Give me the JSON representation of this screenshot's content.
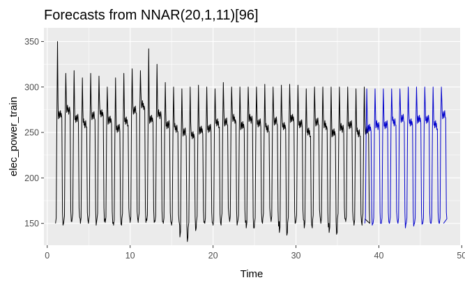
{
  "chart_data": {
    "type": "line",
    "title": "Forecasts from NNAR(20,1,11)[96]",
    "xlabel": "Time",
    "ylabel": "elec_power_train",
    "xlim": [
      -0.4,
      49.8
    ],
    "ylim": [
      126,
      365
    ],
    "x_ticks": [
      0,
      10,
      20,
      30,
      40,
      50
    ],
    "y_ticks": [
      150,
      200,
      250,
      300,
      350
    ],
    "grid": true,
    "legend": "none",
    "colors": {
      "panel_background": "#ebebeb",
      "grid": "#ffffff",
      "observed": "#000000",
      "forecast": "#0000cd"
    },
    "series": [
      {
        "role": "observed",
        "period": 1,
        "x_start": 1.0,
        "x_end": 38.3,
        "trough_values": [
          150,
          152,
          155,
          150,
          153,
          155,
          151,
          148,
          155,
          151,
          155,
          153,
          152,
          150,
          148,
          135,
          145,
          152,
          150,
          148,
          155,
          152,
          153,
          145,
          150,
          155,
          152,
          140,
          151,
          153,
          145,
          153,
          150,
          140,
          155,
          152,
          148,
          155
        ],
        "plateau_values": [
          270,
          275,
          265,
          260,
          268,
          272,
          263,
          255,
          262,
          275,
          280,
          265,
          270,
          258,
          255,
          250,
          248,
          252,
          255,
          260,
          262,
          265,
          258,
          265,
          260,
          255,
          262,
          258,
          265,
          260,
          250,
          262,
          258,
          250,
          255,
          258,
          250,
          252
        ],
        "peak_values": [
          350,
          315,
          318,
          310,
          315,
          312,
          300,
          310,
          315,
          320,
          318,
          342,
          325,
          305,
          300,
          298,
          300,
          302,
          300,
          298,
          305,
          300,
          300,
          300,
          300,
          303,
          300,
          302,
          303,
          302,
          298,
          300,
          300,
          300,
          300,
          300,
          298,
          300
        ]
      },
      {
        "role": "forecast",
        "period": 1,
        "x_start": 38.3,
        "x_end": 47.8,
        "trough_values": [
          150,
          150,
          150,
          151,
          150,
          150,
          150,
          150,
          150,
          150
        ],
        "plateau_values": [
          255,
          258,
          258,
          262,
          265,
          262,
          264,
          265,
          258,
          270
        ],
        "peak_values": [
          298,
          298,
          298,
          298,
          298,
          300,
          300,
          300,
          300,
          300
        ]
      }
    ]
  }
}
